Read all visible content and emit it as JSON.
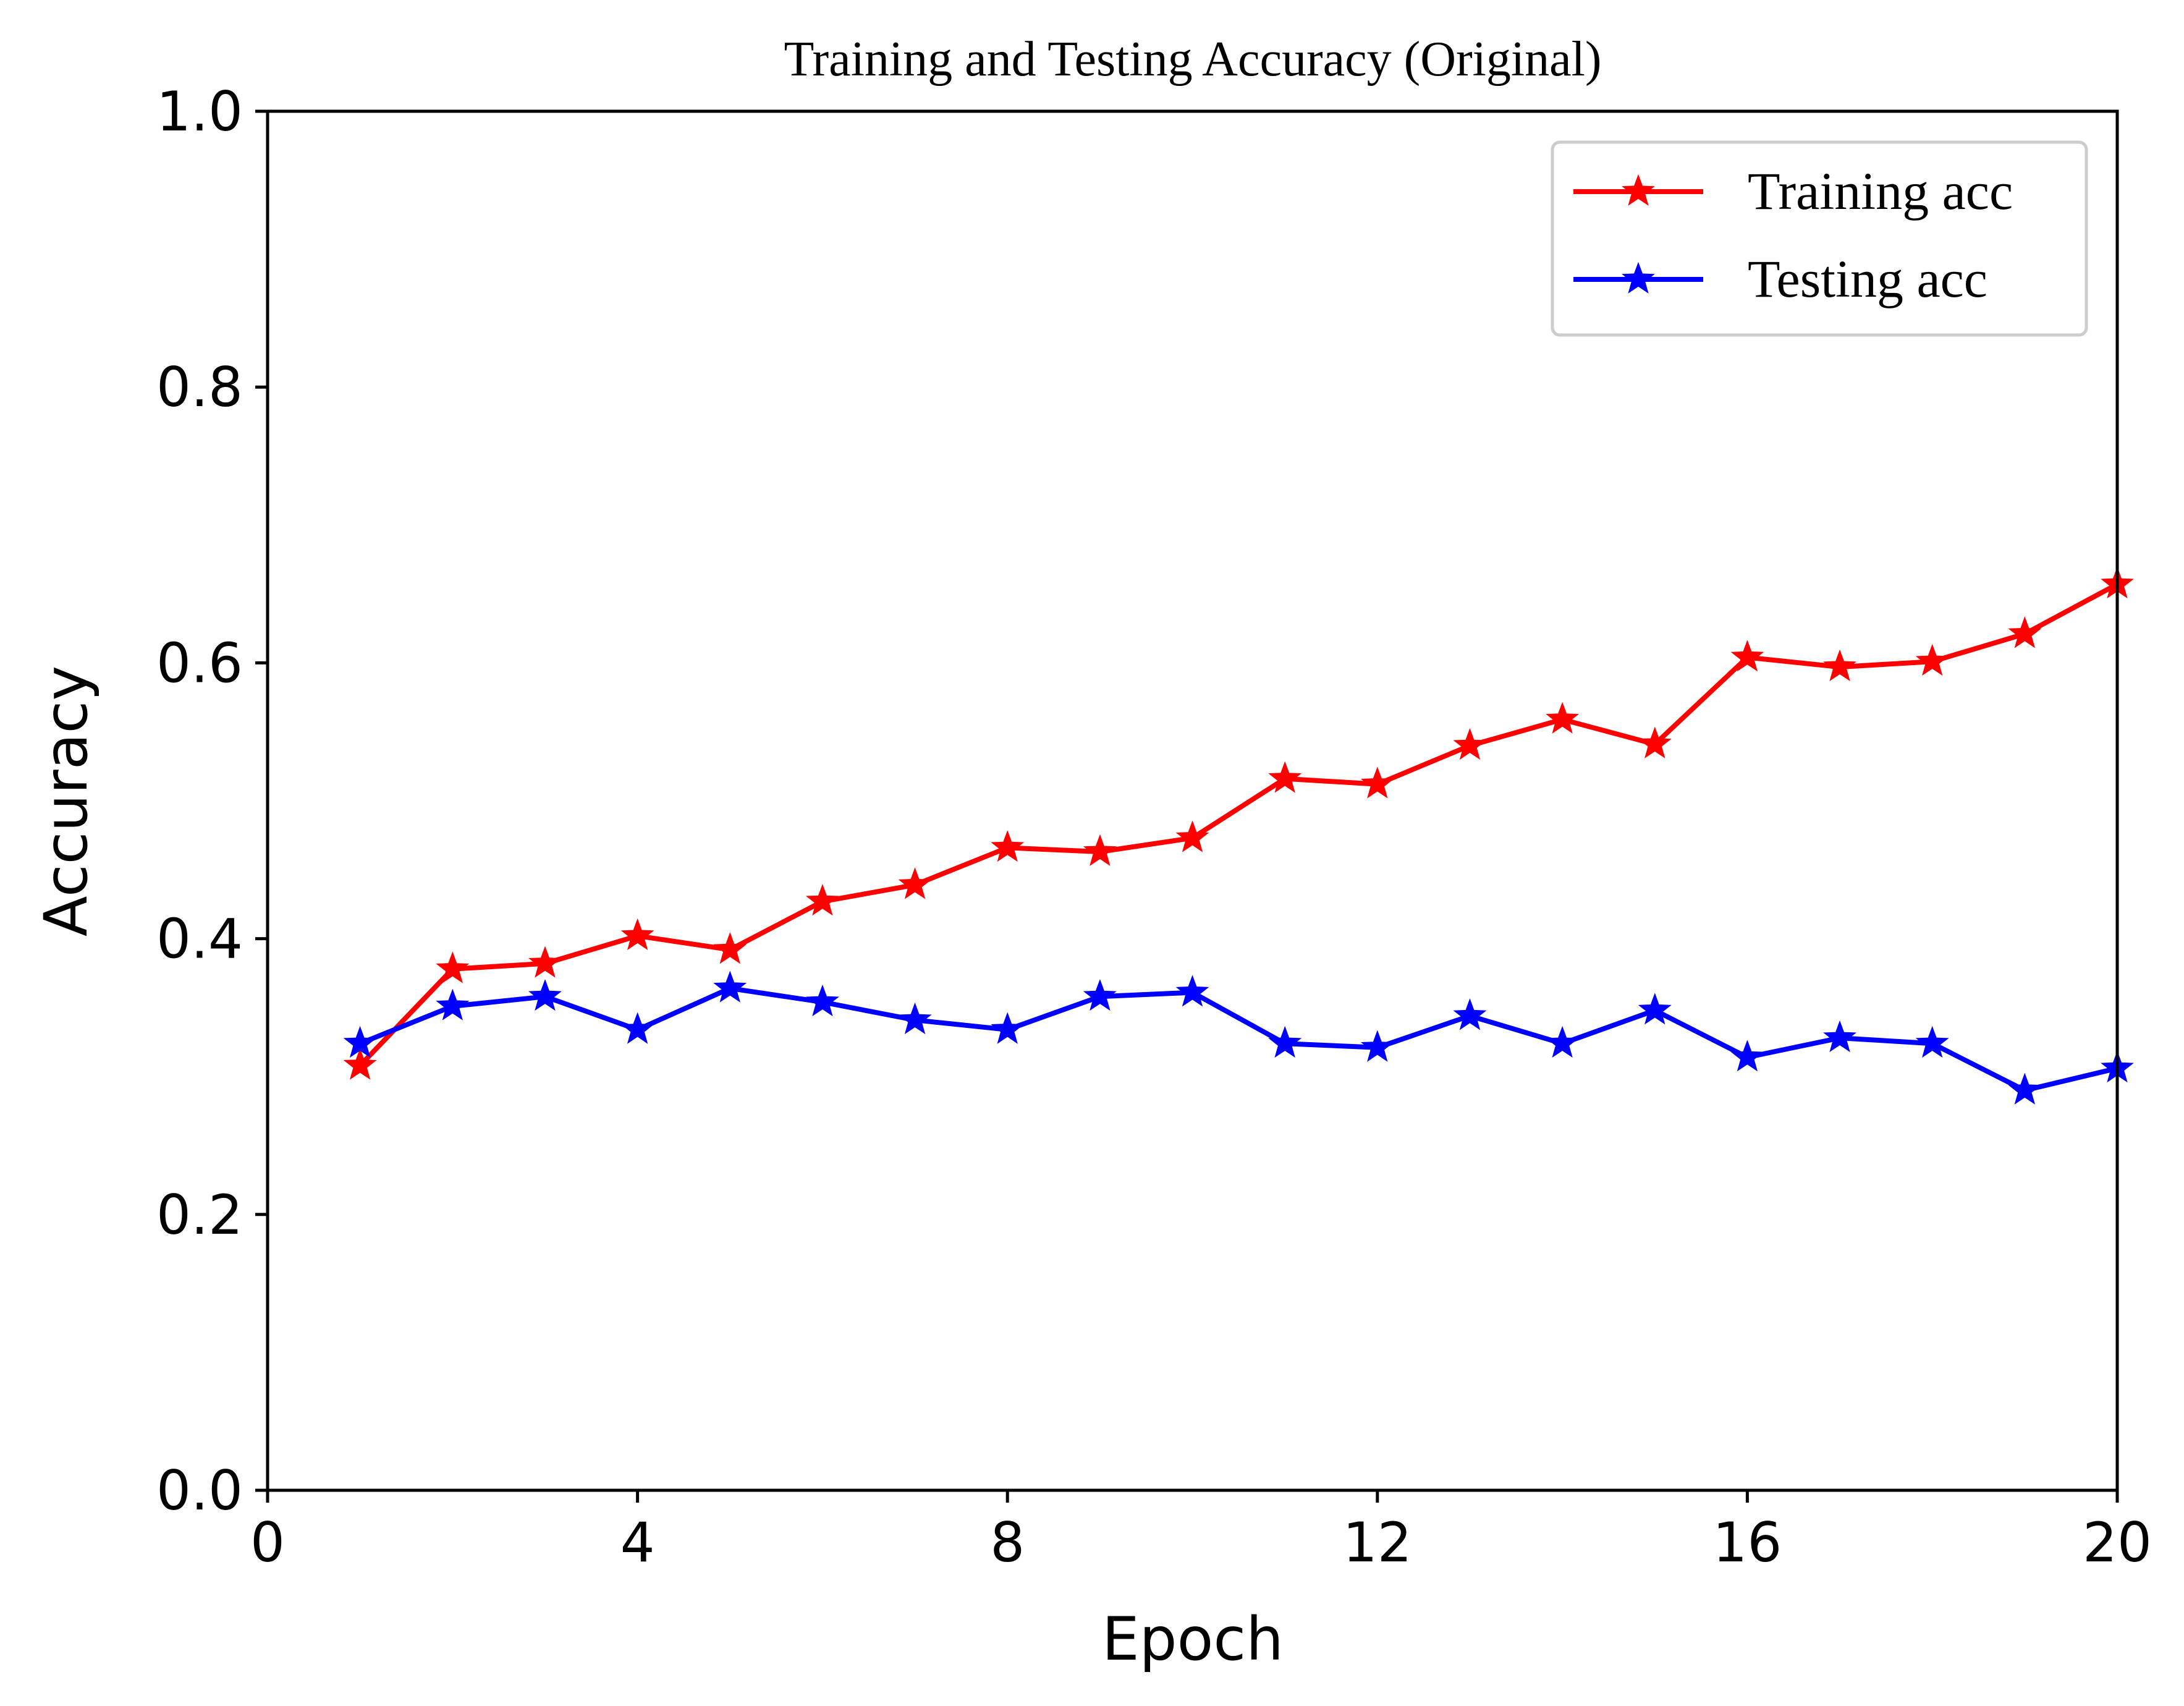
{
  "chart_data": {
    "type": "line",
    "title": "Training and Testing Accuracy (Original)",
    "xlabel": "Epoch",
    "ylabel": "Accuracy",
    "xlim": [
      0,
      20
    ],
    "ylim": [
      0,
      1.0
    ],
    "x_ticks": [
      0,
      4,
      8,
      12,
      16,
      20
    ],
    "x_tick_labels": [
      "0",
      "4",
      "8",
      "12",
      "16",
      "20"
    ],
    "y_ticks": [
      0,
      0.2,
      0.4,
      0.6,
      0.8,
      1.0
    ],
    "y_tick_labels": [
      "0.0",
      "0.2",
      "0.4",
      "0.6",
      "0.8",
      "1.0"
    ],
    "grid": false,
    "legend_position": "top-right",
    "x": [
      1,
      2,
      3,
      4,
      5,
      6,
      7,
      8,
      9,
      10,
      11,
      12,
      13,
      14,
      15,
      16,
      17,
      18,
      19,
      20
    ],
    "series": [
      {
        "name": "Training acc",
        "color": "#ff0000",
        "marker": "star",
        "values": [
          0.308,
          0.378,
          0.382,
          0.402,
          0.392,
          0.427,
          0.439,
          0.466,
          0.463,
          0.473,
          0.516,
          0.512,
          0.54,
          0.559,
          0.541,
          0.604,
          0.597,
          0.601,
          0.621,
          0.657
        ]
      },
      {
        "name": "Testing acc",
        "color": "#0000ff",
        "marker": "star",
        "values": [
          0.324,
          0.351,
          0.358,
          0.334,
          0.364,
          0.354,
          0.341,
          0.334,
          0.358,
          0.361,
          0.324,
          0.321,
          0.344,
          0.324,
          0.348,
          0.314,
          0.328,
          0.324,
          0.29,
          0.306
        ]
      }
    ]
  }
}
